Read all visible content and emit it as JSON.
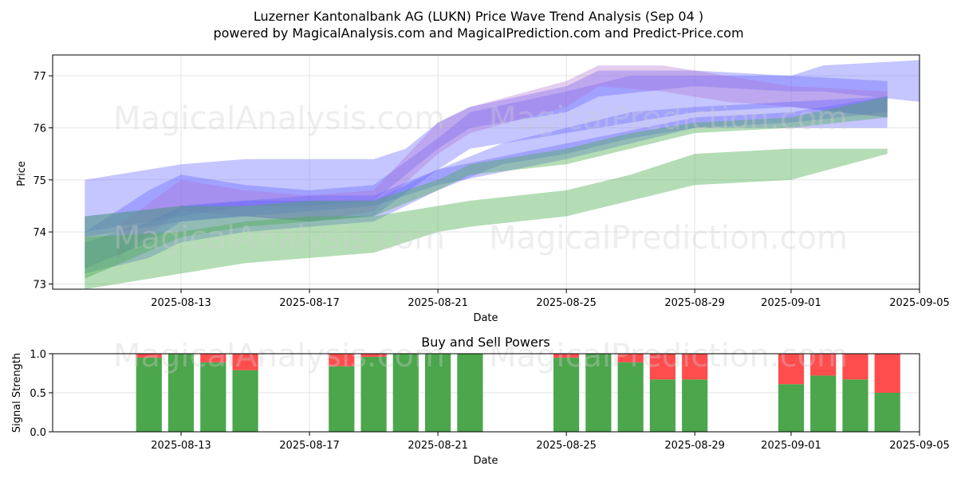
{
  "title_line1": "Luzerner Kantonalbank AG (LUKN) Price Wave Trend Analysis (Sep 04 )",
  "title_line2": "powered by MagicalAnalysis.com and MagicalPrediction.com and Predict-Price.com",
  "watermarks": [
    "MagicalAnalysis.com",
    "MagicalPrediction.com"
  ],
  "colors": {
    "buy": "#4ca64c",
    "sell": "#ff4d4d",
    "band_blue": "#6666ff",
    "band_green": "#4caf50",
    "band_purple": "#b070d0"
  },
  "chart_data": [
    {
      "type": "area",
      "title": "",
      "xlabel": "Date",
      "ylabel": "Price",
      "xlim": [
        "2025-08-09",
        "2025-09-05"
      ],
      "ylim": [
        72.9,
        77.4
      ],
      "x_ticks": [
        "2025-08-13",
        "2025-08-17",
        "2025-08-21",
        "2025-08-25",
        "2025-08-29",
        "2025-09-01",
        "2025-09-05"
      ],
      "y_ticks": [
        73,
        74,
        75,
        76,
        77
      ],
      "grid": true,
      "series": [
        {
          "color": "blue",
          "x": [
            "2025-08-10",
            "2025-08-12",
            "2025-08-13",
            "2025-08-15",
            "2025-08-17",
            "2025-08-19",
            "2025-08-20",
            "2025-08-21",
            "2025-08-22",
            "2025-08-25",
            "2025-08-26",
            "2025-08-29",
            "2025-09-01",
            "2025-09-02",
            "2025-09-05"
          ],
          "lower": [
            74.0,
            74.2,
            74.3,
            74.5,
            74.5,
            74.6,
            75.1,
            75.6,
            76.0,
            76.3,
            76.6,
            76.8,
            76.7,
            76.7,
            76.5
          ],
          "upper": [
            75.0,
            75.2,
            75.3,
            75.4,
            75.4,
            75.4,
            75.6,
            76.1,
            76.4,
            76.8,
            77.1,
            77.1,
            77.0,
            77.2,
            77.3
          ]
        },
        {
          "color": "blue",
          "x": [
            "2025-08-10",
            "2025-08-12",
            "2025-08-13",
            "2025-08-15",
            "2025-08-17",
            "2025-08-19",
            "2025-08-21",
            "2025-08-22",
            "2025-08-25",
            "2025-08-27",
            "2025-08-29",
            "2025-09-01",
            "2025-09-04"
          ],
          "lower": [
            73.3,
            73.8,
            74.2,
            74.3,
            74.2,
            74.3,
            75.2,
            75.6,
            75.9,
            76.1,
            76.3,
            76.4,
            76.2
          ],
          "upper": [
            74.0,
            74.8,
            75.1,
            74.9,
            74.8,
            74.9,
            75.8,
            76.3,
            76.7,
            77.0,
            77.0,
            77.0,
            76.9
          ]
        },
        {
          "color": "purple",
          "x": [
            "2025-08-11",
            "2025-08-13",
            "2025-08-15",
            "2025-08-17",
            "2025-08-19",
            "2025-08-21",
            "2025-08-22",
            "2025-08-25",
            "2025-08-26",
            "2025-08-28",
            "2025-08-30",
            "2025-09-01",
            "2025-09-04"
          ],
          "lower": [
            73.5,
            74.4,
            74.3,
            74.2,
            74.4,
            75.5,
            75.9,
            76.4,
            76.8,
            76.7,
            76.5,
            76.4,
            76.2
          ],
          "upper": [
            74.1,
            75.0,
            74.8,
            74.7,
            74.8,
            76.1,
            76.4,
            76.9,
            77.2,
            77.2,
            77.0,
            76.8,
            76.7
          ]
        },
        {
          "color": "blue",
          "x": [
            "2025-08-10",
            "2025-08-12",
            "2025-08-13",
            "2025-08-15",
            "2025-08-17",
            "2025-08-19",
            "2025-08-21",
            "2025-08-23",
            "2025-08-25",
            "2025-08-27",
            "2025-08-29",
            "2025-09-01",
            "2025-09-04"
          ],
          "lower": [
            73.2,
            73.5,
            73.8,
            74.0,
            74.1,
            74.2,
            74.8,
            75.3,
            75.5,
            75.8,
            76.0,
            76.0,
            76.0
          ],
          "upper": [
            73.8,
            74.2,
            74.5,
            74.6,
            74.6,
            74.6,
            75.2,
            75.7,
            76.0,
            76.3,
            76.4,
            76.5,
            76.6
          ]
        },
        {
          "color": "blue",
          "x": [
            "2025-08-10",
            "2025-08-13",
            "2025-08-17",
            "2025-08-19",
            "2025-08-21",
            "2025-08-25",
            "2025-08-29",
            "2025-09-01",
            "2025-09-04"
          ],
          "lower": [
            73.9,
            74.2,
            74.4,
            74.5,
            74.9,
            75.4,
            76.0,
            76.1,
            76.3
          ],
          "upper": [
            74.3,
            74.5,
            74.7,
            74.7,
            75.2,
            75.7,
            76.2,
            76.3,
            76.6
          ]
        },
        {
          "color": "green",
          "x": [
            "2025-08-10",
            "2025-08-13",
            "2025-08-15",
            "2025-08-17",
            "2025-08-19",
            "2025-08-21",
            "2025-08-22",
            "2025-08-25",
            "2025-08-27",
            "2025-08-29",
            "2025-09-01",
            "2025-09-04"
          ],
          "lower": [
            73.1,
            73.9,
            74.1,
            74.2,
            74.3,
            74.8,
            75.1,
            75.3,
            75.6,
            75.9,
            76.0,
            76.2
          ],
          "upper": [
            74.3,
            74.5,
            74.5,
            74.6,
            74.6,
            75.0,
            75.3,
            75.6,
            75.9,
            76.1,
            76.2,
            76.6
          ]
        },
        {
          "color": "green",
          "x": [
            "2025-08-10",
            "2025-08-13",
            "2025-08-15",
            "2025-08-17",
            "2025-08-19",
            "2025-08-21",
            "2025-08-22",
            "2025-08-25",
            "2025-08-27",
            "2025-08-29",
            "2025-09-01",
            "2025-09-04"
          ],
          "lower": [
            72.9,
            73.2,
            73.4,
            73.5,
            73.6,
            74.0,
            74.1,
            74.3,
            74.6,
            74.9,
            75.0,
            75.5
          ],
          "upper": [
            73.9,
            74.0,
            74.2,
            74.3,
            74.3,
            74.5,
            74.6,
            74.8,
            75.1,
            75.5,
            75.6,
            75.6
          ]
        }
      ]
    },
    {
      "type": "bar",
      "title": "Buy and Sell Powers",
      "xlabel": "Date",
      "ylabel": "Signal Strength",
      "ylim": [
        0.0,
        1.0
      ],
      "y_ticks": [
        "0.0",
        "0.5",
        "1.0"
      ],
      "x_ticks": [
        "2025-08-13",
        "2025-08-17",
        "2025-08-21",
        "2025-08-25",
        "2025-08-29",
        "2025-09-01",
        "2025-09-05"
      ],
      "x": [
        "2025-08-12",
        "2025-08-13",
        "2025-08-14",
        "2025-08-15",
        "2025-08-18",
        "2025-08-19",
        "2025-08-20",
        "2025-08-21",
        "2025-08-22",
        "2025-08-25",
        "2025-08-26",
        "2025-08-27",
        "2025-08-28",
        "2025-08-29",
        "2025-09-01",
        "2025-09-02",
        "2025-09-03",
        "2025-09-04"
      ],
      "series": [
        {
          "name": "buy",
          "values": [
            0.95,
            1.0,
            0.89,
            0.79,
            0.84,
            0.96,
            1.0,
            1.0,
            1.0,
            0.95,
            1.0,
            0.89,
            0.67,
            0.67,
            0.61,
            0.72,
            0.67,
            0.5
          ]
        },
        {
          "name": "sell",
          "values": [
            0.05,
            0.0,
            0.11,
            0.21,
            0.16,
            0.04,
            0.0,
            0.0,
            0.0,
            0.05,
            0.0,
            0.11,
            0.33,
            0.33,
            0.39,
            0.28,
            0.33,
            0.5
          ]
        }
      ]
    }
  ]
}
